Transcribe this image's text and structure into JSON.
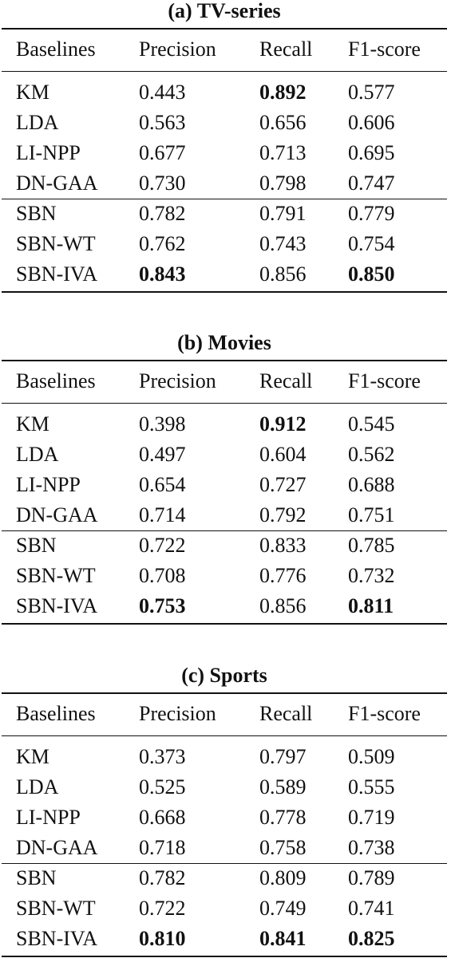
{
  "tables": [
    {
      "caption": "(a) TV-series",
      "headers": [
        "Baselines",
        "Precision",
        "Recall",
        "F1-score"
      ],
      "rows": [
        {
          "cells": [
            "KM",
            "0.443",
            "0.892",
            "0.577"
          ],
          "bold": [
            false,
            false,
            true,
            false
          ]
        },
        {
          "cells": [
            "LDA",
            "0.563",
            "0.656",
            "0.606"
          ],
          "bold": [
            false,
            false,
            false,
            false
          ]
        },
        {
          "cells": [
            "LI-NPP",
            "0.677",
            "0.713",
            "0.695"
          ],
          "bold": [
            false,
            false,
            false,
            false
          ]
        },
        {
          "cells": [
            "DN-GAA",
            "0.730",
            "0.798",
            "0.747"
          ],
          "bold": [
            false,
            false,
            false,
            false
          ]
        },
        {
          "cells": [
            "SBN",
            "0.782",
            "0.791",
            "0.779"
          ],
          "bold": [
            false,
            false,
            false,
            false
          ]
        },
        {
          "cells": [
            "SBN-WT",
            "0.762",
            "0.743",
            "0.754"
          ],
          "bold": [
            false,
            false,
            false,
            false
          ]
        },
        {
          "cells": [
            "SBN-IVA",
            "0.843",
            "0.856",
            "0.850"
          ],
          "bold": [
            false,
            true,
            false,
            true
          ]
        }
      ]
    },
    {
      "caption": "(b) Movies",
      "headers": [
        "Baselines",
        "Precision",
        "Recall",
        "F1-score"
      ],
      "rows": [
        {
          "cells": [
            "KM",
            "0.398",
            "0.912",
            "0.545"
          ],
          "bold": [
            false,
            false,
            true,
            false
          ]
        },
        {
          "cells": [
            "LDA",
            "0.497",
            "0.604",
            "0.562"
          ],
          "bold": [
            false,
            false,
            false,
            false
          ]
        },
        {
          "cells": [
            "LI-NPP",
            "0.654",
            "0.727",
            "0.688"
          ],
          "bold": [
            false,
            false,
            false,
            false
          ]
        },
        {
          "cells": [
            "DN-GAA",
            "0.714",
            "0.792",
            "0.751"
          ],
          "bold": [
            false,
            false,
            false,
            false
          ]
        },
        {
          "cells": [
            "SBN",
            "0.722",
            "0.833",
            "0.785"
          ],
          "bold": [
            false,
            false,
            false,
            false
          ]
        },
        {
          "cells": [
            "SBN-WT",
            "0.708",
            "0.776",
            "0.732"
          ],
          "bold": [
            false,
            false,
            false,
            false
          ]
        },
        {
          "cells": [
            "SBN-IVA",
            "0.753",
            "0.856",
            "0.811"
          ],
          "bold": [
            false,
            true,
            false,
            true
          ]
        }
      ]
    },
    {
      "caption": "(c) Sports",
      "headers": [
        "Baselines",
        "Precision",
        "Recall",
        "F1-score"
      ],
      "rows": [
        {
          "cells": [
            "KM",
            "0.373",
            "0.797",
            "0.509"
          ],
          "bold": [
            false,
            false,
            false,
            false
          ]
        },
        {
          "cells": [
            "LDA",
            "0.525",
            "0.589",
            "0.555"
          ],
          "bold": [
            false,
            false,
            false,
            false
          ]
        },
        {
          "cells": [
            "LI-NPP",
            "0.668",
            "0.778",
            "0.719"
          ],
          "bold": [
            false,
            false,
            false,
            false
          ]
        },
        {
          "cells": [
            "DN-GAA",
            "0.718",
            "0.758",
            "0.738"
          ],
          "bold": [
            false,
            false,
            false,
            false
          ]
        },
        {
          "cells": [
            "SBN",
            "0.782",
            "0.809",
            "0.789"
          ],
          "bold": [
            false,
            false,
            false,
            false
          ]
        },
        {
          "cells": [
            "SBN-WT",
            "0.722",
            "0.749",
            "0.741"
          ],
          "bold": [
            false,
            false,
            false,
            false
          ]
        },
        {
          "cells": [
            "SBN-IVA",
            "0.810",
            "0.841",
            "0.825"
          ],
          "bold": [
            false,
            true,
            true,
            true
          ]
        }
      ]
    }
  ]
}
